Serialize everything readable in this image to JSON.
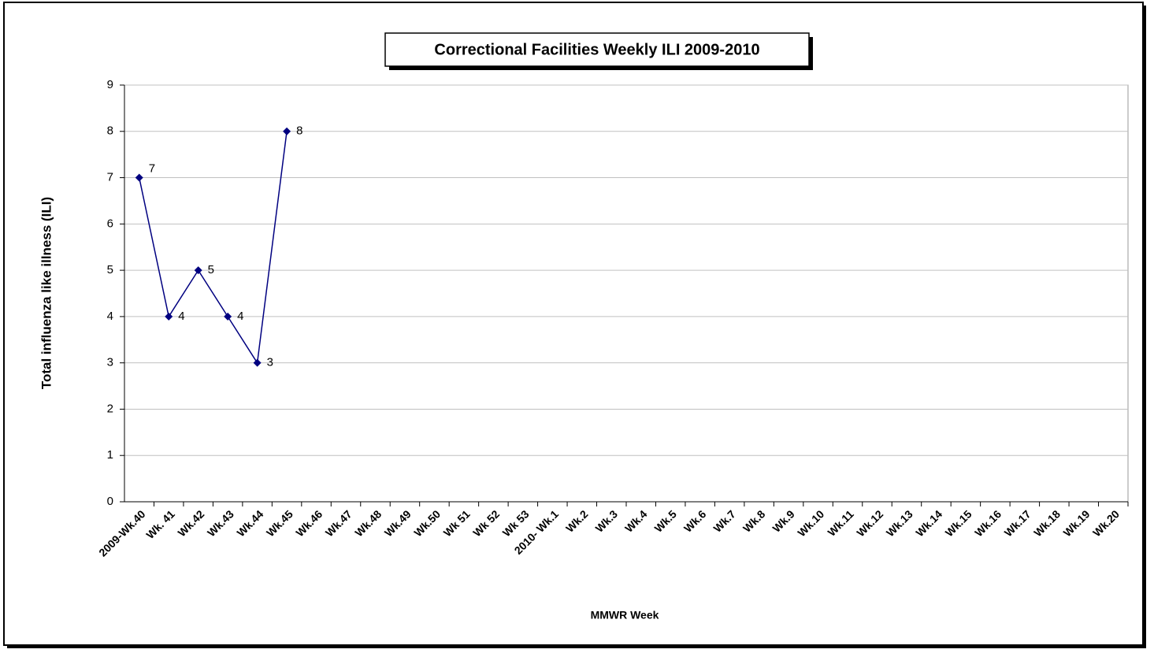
{
  "chart_data": {
    "type": "line",
    "title": "Correctional Facilities Weekly ILI 2009-2010",
    "x_label": "MMWR Week",
    "y_label": "Total influenza like illness (ILI)",
    "categories": [
      "2009-Wk.40",
      "Wk. 41",
      "Wk.42",
      "Wk.43",
      "Wk.44",
      "Wk.45",
      "Wk.46",
      "Wk.47",
      "Wk.48",
      "Wk.49",
      "Wk.50",
      "Wk 51",
      "Wk 52",
      "Wk 53",
      "2010- Wk.1",
      "Wk.2",
      "Wk.3",
      "Wk.4",
      "Wk.5",
      "Wk.6",
      "Wk.7",
      "Wk.8",
      "Wk.9",
      "Wk.10",
      "Wk.11",
      "Wk.12",
      "Wk.13",
      "Wk.14",
      "Wk.15",
      "Wk.16",
      "Wk.17",
      "Wk.18",
      "Wk.19",
      "Wk.20"
    ],
    "values": [
      7,
      4,
      5,
      4,
      3,
      8,
      null,
      null,
      null,
      null,
      null,
      null,
      null,
      null,
      null,
      null,
      null,
      null,
      null,
      null,
      null,
      null,
      null,
      null,
      null,
      null,
      null,
      null,
      null,
      null,
      null,
      null,
      null,
      null
    ],
    "color": "#000080",
    "ylim": [
      0,
      9
    ],
    "yticks": [
      0,
      1,
      2,
      3,
      4,
      5,
      6,
      7,
      8,
      9
    ],
    "grid": true
  }
}
